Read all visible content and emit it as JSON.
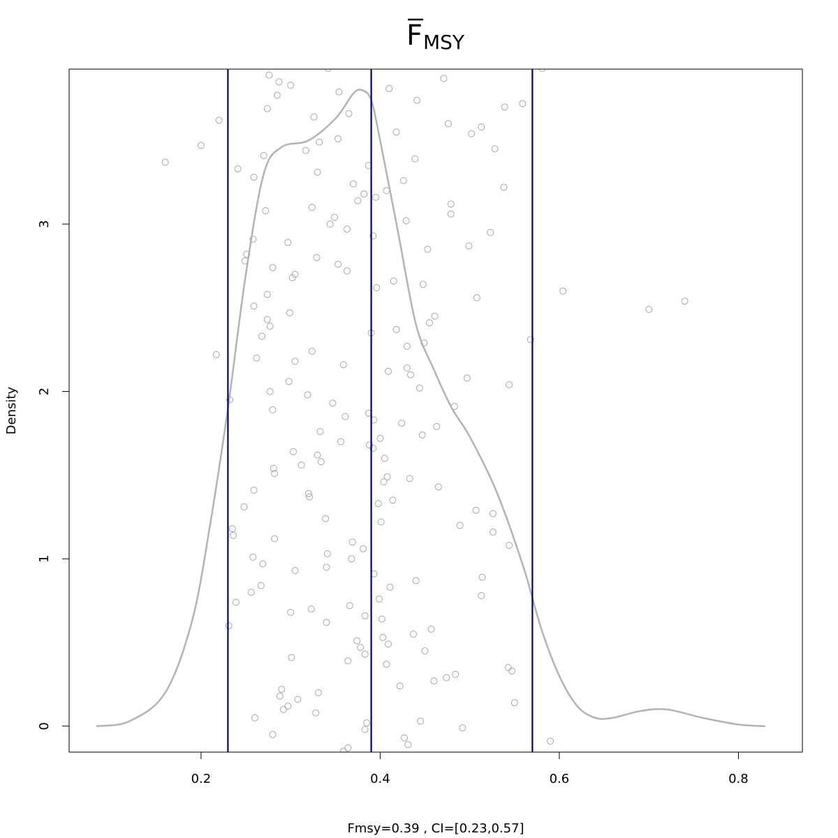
{
  "chart_data": {
    "type": "scatter",
    "title_main": "F",
    "title_sub": "MSY",
    "title_bar": true,
    "xlabel": "Fmsy=0.39 , CI=[0.23,0.57]",
    "ylabel": "Density",
    "xlim": [
      0.0527,
      0.8714
    ],
    "ylim": [
      -0.155,
      3.926
    ],
    "x_ticks": [
      0.2,
      0.4,
      0.6,
      0.8
    ],
    "x_tick_labels": [
      "0.2",
      "0.4",
      "0.6",
      "0.8"
    ],
    "y_ticks": [
      0,
      1,
      2,
      3
    ],
    "y_tick_labels": [
      "0",
      "1",
      "2",
      "3"
    ],
    "grid": false,
    "legend": "none",
    "colors": {
      "points": "#a6a6a6",
      "density": "#b3b3b3",
      "vlines": "#000080",
      "frame": "#000000"
    },
    "vertical_lines": [
      0.23,
      0.39,
      0.57
    ],
    "density_curve": {
      "x": [
        0.083,
        0.12,
        0.16,
        0.19,
        0.21,
        0.23,
        0.25,
        0.27,
        0.29,
        0.32,
        0.35,
        0.37,
        0.38,
        0.39,
        0.4,
        0.42,
        0.44,
        0.46,
        0.48,
        0.5,
        0.53,
        0.56,
        0.58,
        0.6,
        0.62,
        0.64,
        0.66,
        0.69,
        0.72,
        0.76,
        0.8,
        0.83
      ],
      "y": [
        0,
        0.03,
        0.2,
        0.63,
        1.2,
        1.9,
        2.7,
        3.3,
        3.46,
        3.5,
        3.63,
        3.78,
        3.8,
        3.74,
        3.5,
        2.95,
        2.4,
        2.13,
        1.9,
        1.73,
        1.4,
        0.95,
        0.58,
        0.3,
        0.12,
        0.05,
        0.05,
        0.09,
        0.1,
        0.05,
        0.01,
        0
      ]
    },
    "points": [
      {
        "x": 0.16,
        "y": 3.37
      },
      {
        "x": 0.2,
        "y": 3.47
      },
      {
        "x": 0.22,
        "y": 3.62
      },
      {
        "x": 0.217,
        "y": 2.22
      },
      {
        "x": 0.232,
        "y": 1.95
      },
      {
        "x": 0.231,
        "y": 0.6
      },
      {
        "x": 0.235,
        "y": 1.18
      },
      {
        "x": 0.236,
        "y": 1.14
      },
      {
        "x": 0.239,
        "y": 0.74
      },
      {
        "x": 0.241,
        "y": 3.33
      },
      {
        "x": 0.248,
        "y": 1.31
      },
      {
        "x": 0.249,
        "y": 2.78
      },
      {
        "x": 0.251,
        "y": 2.82
      },
      {
        "x": 0.256,
        "y": 0.8
      },
      {
        "x": 0.258,
        "y": 1.01
      },
      {
        "x": 0.258,
        "y": 2.91
      },
      {
        "x": 0.259,
        "y": 3.28
      },
      {
        "x": 0.259,
        "y": 1.41
      },
      {
        "x": 0.259,
        "y": 2.51
      },
      {
        "x": 0.26,
        "y": 0.05
      },
      {
        "x": 0.262,
        "y": 2.2
      },
      {
        "x": 0.267,
        "y": 0.84
      },
      {
        "x": 0.268,
        "y": 2.33
      },
      {
        "x": 0.269,
        "y": 0.97
      },
      {
        "x": 0.27,
        "y": 3.41
      },
      {
        "x": 0.272,
        "y": 3.08
      },
      {
        "x": 0.274,
        "y": 3.69
      },
      {
        "x": 0.274,
        "y": 2.43
      },
      {
        "x": 0.274,
        "y": 2.58
      },
      {
        "x": 0.276,
        "y": 3.89
      },
      {
        "x": 0.277,
        "y": 2.0
      },
      {
        "x": 0.277,
        "y": 2.39
      },
      {
        "x": 0.28,
        "y": 1.89
      },
      {
        "x": 0.28,
        "y": 2.74
      },
      {
        "x": 0.28,
        "y": -0.05
      },
      {
        "x": 0.281,
        "y": 1.54
      },
      {
        "x": 0.282,
        "y": 1.51
      },
      {
        "x": 0.282,
        "y": 1.12
      },
      {
        "x": 0.285,
        "y": 3.77
      },
      {
        "x": 0.287,
        "y": 3.85
      },
      {
        "x": 0.288,
        "y": 0.18
      },
      {
        "x": 0.29,
        "y": 0.22
      },
      {
        "x": 0.292,
        "y": 0.1
      },
      {
        "x": 0.297,
        "y": 2.89
      },
      {
        "x": 0.297,
        "y": 0.12
      },
      {
        "x": 0.298,
        "y": 2.06
      },
      {
        "x": 0.299,
        "y": 2.47
      },
      {
        "x": 0.3,
        "y": 3.83
      },
      {
        "x": 0.3,
        "y": 0.68
      },
      {
        "x": 0.301,
        "y": 0.41
      },
      {
        "x": 0.302,
        "y": 2.68
      },
      {
        "x": 0.303,
        "y": 1.64
      },
      {
        "x": 0.305,
        "y": 2.7
      },
      {
        "x": 0.305,
        "y": 2.18
      },
      {
        "x": 0.305,
        "y": 0.93
      },
      {
        "x": 0.308,
        "y": 0.16
      },
      {
        "x": 0.312,
        "y": 1.56
      },
      {
        "x": 0.317,
        "y": 3.44
      },
      {
        "x": 0.319,
        "y": 1.98
      },
      {
        "x": 0.32,
        "y": 1.39
      },
      {
        "x": 0.321,
        "y": 1.37
      },
      {
        "x": 0.323,
        "y": 0.7
      },
      {
        "x": 0.324,
        "y": 3.1
      },
      {
        "x": 0.324,
        "y": 2.24
      },
      {
        "x": 0.326,
        "y": 3.64
      },
      {
        "x": 0.328,
        "y": 0.08
      },
      {
        "x": 0.329,
        "y": 2.8
      },
      {
        "x": 0.33,
        "y": 1.62
      },
      {
        "x": 0.33,
        "y": 3.31
      },
      {
        "x": 0.331,
        "y": 0.2
      },
      {
        "x": 0.332,
        "y": 3.49
      },
      {
        "x": 0.333,
        "y": 1.76
      },
      {
        "x": 0.334,
        "y": 1.58
      },
      {
        "x": 0.339,
        "y": 1.24
      },
      {
        "x": 0.34,
        "y": 0.95
      },
      {
        "x": 0.34,
        "y": 0.62
      },
      {
        "x": 0.341,
        "y": 1.03
      },
      {
        "x": 0.342,
        "y": 3.93
      },
      {
        "x": 0.344,
        "y": 3.0
      },
      {
        "x": 0.347,
        "y": 1.93
      },
      {
        "x": 0.349,
        "y": 3.04
      },
      {
        "x": 0.353,
        "y": 3.51
      },
      {
        "x": 0.353,
        "y": 2.76
      },
      {
        "x": 0.354,
        "y": 3.79
      },
      {
        "x": 0.356,
        "y": 1.7
      },
      {
        "x": 0.359,
        "y": 2.16
      },
      {
        "x": 0.359,
        "y": -0.15
      },
      {
        "x": 0.361,
        "y": 1.85
      },
      {
        "x": 0.363,
        "y": 2.97
      },
      {
        "x": 0.363,
        "y": 2.72
      },
      {
        "x": 0.364,
        "y": -0.13
      },
      {
        "x": 0.364,
        "y": 0.39
      },
      {
        "x": 0.365,
        "y": 3.66
      },
      {
        "x": 0.366,
        "y": 0.72
      },
      {
        "x": 0.368,
        "y": 1.0
      },
      {
        "x": 0.369,
        "y": 1.1
      },
      {
        "x": 0.37,
        "y": 3.24
      },
      {
        "x": 0.374,
        "y": 0.51
      },
      {
        "x": 0.375,
        "y": 3.14
      },
      {
        "x": 0.378,
        "y": 0.47
      },
      {
        "x": 0.381,
        "y": 1.06
      },
      {
        "x": 0.382,
        "y": 3.18
      },
      {
        "x": 0.383,
        "y": 0.43
      },
      {
        "x": 0.383,
        "y": -0.02
      },
      {
        "x": 0.383,
        "y": 0.66
      },
      {
        "x": 0.385,
        "y": 0.02
      },
      {
        "x": 0.387,
        "y": 3.35
      },
      {
        "x": 0.387,
        "y": 1.87
      },
      {
        "x": 0.388,
        "y": 1.68
      },
      {
        "x": 0.39,
        "y": 2.35
      },
      {
        "x": 0.392,
        "y": 2.93
      },
      {
        "x": 0.392,
        "y": 1.66
      },
      {
        "x": 0.393,
        "y": 1.83
      },
      {
        "x": 0.393,
        "y": 0.91
      },
      {
        "x": 0.395,
        "y": 3.16
      },
      {
        "x": 0.396,
        "y": 2.62
      },
      {
        "x": 0.398,
        "y": 1.33
      },
      {
        "x": 0.399,
        "y": 0.76
      },
      {
        "x": 0.4,
        "y": 1.72
      },
      {
        "x": 0.401,
        "y": 1.22
      },
      {
        "x": 0.402,
        "y": 0.64
      },
      {
        "x": 0.403,
        "y": 0.53
      },
      {
        "x": 0.404,
        "y": 1.46
      },
      {
        "x": 0.405,
        "y": 1.6
      },
      {
        "x": 0.407,
        "y": 3.2
      },
      {
        "x": 0.407,
        "y": 0.37
      },
      {
        "x": 0.408,
        "y": 1.49
      },
      {
        "x": 0.409,
        "y": 0.49
      },
      {
        "x": 0.409,
        "y": 2.12
      },
      {
        "x": 0.41,
        "y": 3.81
      },
      {
        "x": 0.411,
        "y": 0.83
      },
      {
        "x": 0.414,
        "y": 1.35
      },
      {
        "x": 0.415,
        "y": 2.66
      },
      {
        "x": 0.418,
        "y": 3.55
      },
      {
        "x": 0.418,
        "y": 2.37
      },
      {
        "x": 0.422,
        "y": 0.24
      },
      {
        "x": 0.424,
        "y": 1.81
      },
      {
        "x": 0.426,
        "y": 3.26
      },
      {
        "x": 0.427,
        "y": -0.07
      },
      {
        "x": 0.429,
        "y": 3.02
      },
      {
        "x": 0.43,
        "y": 2.27
      },
      {
        "x": 0.43,
        "y": 2.14
      },
      {
        "x": 0.431,
        "y": -0.11
      },
      {
        "x": 0.433,
        "y": 1.48
      },
      {
        "x": 0.434,
        "y": 2.1
      },
      {
        "x": 0.437,
        "y": 0.55
      },
      {
        "x": 0.439,
        "y": 3.39
      },
      {
        "x": 0.44,
        "y": 0.87
      },
      {
        "x": 0.441,
        "y": 3.74
      },
      {
        "x": 0.444,
        "y": 2.02
      },
      {
        "x": 0.445,
        "y": 0.03
      },
      {
        "x": 0.447,
        "y": 1.74
      },
      {
        "x": 0.448,
        "y": 2.64
      },
      {
        "x": 0.449,
        "y": 2.29
      },
      {
        "x": 0.45,
        "y": 0.45
      },
      {
        "x": 0.453,
        "y": 2.85
      },
      {
        "x": 0.455,
        "y": 2.41
      },
      {
        "x": 0.457,
        "y": 0.58
      },
      {
        "x": 0.46,
        "y": 0.27
      },
      {
        "x": 0.461,
        "y": 2.45
      },
      {
        "x": 0.463,
        "y": 1.79
      },
      {
        "x": 0.465,
        "y": 1.43
      },
      {
        "x": 0.471,
        "y": 3.87
      },
      {
        "x": 0.474,
        "y": 0.29
      },
      {
        "x": 0.476,
        "y": 3.6
      },
      {
        "x": 0.479,
        "y": 3.06
      },
      {
        "x": 0.479,
        "y": 3.12
      },
      {
        "x": 0.483,
        "y": 1.91
      },
      {
        "x": 0.484,
        "y": 0.31
      },
      {
        "x": 0.489,
        "y": 1.2
      },
      {
        "x": 0.492,
        "y": -0.01
      },
      {
        "x": 0.497,
        "y": 2.08
      },
      {
        "x": 0.499,
        "y": 2.87
      },
      {
        "x": 0.502,
        "y": 3.54
      },
      {
        "x": 0.507,
        "y": 1.29
      },
      {
        "x": 0.508,
        "y": 2.56
      },
      {
        "x": 0.513,
        "y": 3.58
      },
      {
        "x": 0.513,
        "y": 0.78
      },
      {
        "x": 0.514,
        "y": 0.89
      },
      {
        "x": 0.523,
        "y": 2.95
      },
      {
        "x": 0.526,
        "y": 1.27
      },
      {
        "x": 0.526,
        "y": 1.16
      },
      {
        "x": 0.528,
        "y": 3.45
      },
      {
        "x": 0.538,
        "y": 3.22
      },
      {
        "x": 0.539,
        "y": 3.7
      },
      {
        "x": 0.543,
        "y": 0.35
      },
      {
        "x": 0.544,
        "y": 2.04
      },
      {
        "x": 0.544,
        "y": 1.08
      },
      {
        "x": 0.547,
        "y": 0.33
      },
      {
        "x": 0.55,
        "y": 0.14
      },
      {
        "x": 0.559,
        "y": 3.72
      },
      {
        "x": 0.568,
        "y": 2.31
      },
      {
        "x": 0.581,
        "y": 3.93
      },
      {
        "x": 0.59,
        "y": -0.09
      },
      {
        "x": 0.604,
        "y": 2.6
      },
      {
        "x": 0.7,
        "y": 2.49
      },
      {
        "x": 0.74,
        "y": 2.54
      }
    ]
  }
}
